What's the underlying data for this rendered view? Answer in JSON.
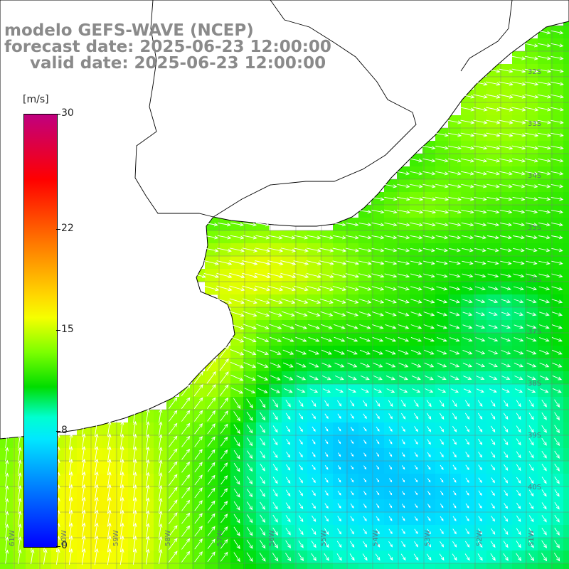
{
  "header": {
    "line1": "modelo GEFS-WAVE (NCEP)",
    "line2": "forecast date: 2025-06-23 12:00:00",
    "line3": "valid date: 2025-06-23 12:00:00"
  },
  "colorbar": {
    "units": "[m/s]",
    "ticks": [
      "30",
      "22",
      "15",
      "8",
      "0"
    ],
    "tick_values": [
      30,
      22,
      15,
      8,
      0
    ],
    "min": 0,
    "max": 30,
    "colors": [
      "#0000ff",
      "#009cff",
      "#00e8ff",
      "#00ffd0",
      "#00dd00",
      "#7cff00",
      "#f5ff00",
      "#ffd800",
      "#ff7a00",
      "#ff0000",
      "#c0007f"
    ]
  },
  "map": {
    "variable": "wind speed",
    "land_color": "#ffffff",
    "coast_color": "#000000",
    "grid_color": "#7a7a7a",
    "arrow_color": "#ffffff",
    "lat_labels": [
      "32S",
      "33S",
      "34S",
      "35S",
      "36S",
      "37S",
      "38S",
      "39S",
      "40S"
    ],
    "lon_labels": [
      "61W",
      "60W",
      "59W",
      "58W",
      "57W",
      "56W",
      "55W",
      "54W",
      "53W",
      "52W",
      "51W"
    ]
  }
}
